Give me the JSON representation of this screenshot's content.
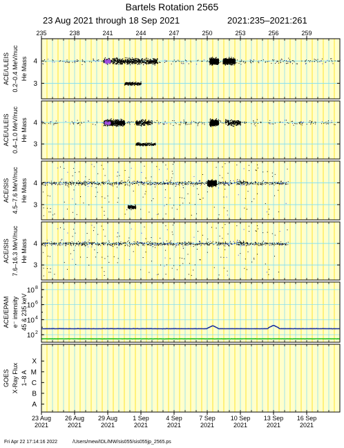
{
  "title": "Bartels Rotation 2565",
  "subtitle": {
    "range": "23 Aug 2021 through 18 Sep 2021",
    "doy": "2021:235–2021:261"
  },
  "footer": {
    "timestamp": "Fri Apr 22 17:14:16 2022",
    "path": "/Users/mew/IDL/MW/sis055/sis055jp_2565.ps"
  },
  "colors": {
    "panel_bg": "#ffffcc",
    "yellow_grid": "#ffdd00",
    "cyan_grid": "#88e0f0",
    "dots": "#000000",
    "dots_alt": "#2040ff",
    "core": "#a050e0",
    "epam_low": "#20c020",
    "epam_high": "#1a2fa0"
  },
  "chart_data": {
    "type": "scatter",
    "x_range_doy": [
      235,
      262
    ],
    "top_ticks": [
      "235",
      "238",
      "241",
      "244",
      "247",
      "250",
      "253",
      "256",
      "259"
    ],
    "top_tick_doy": [
      235,
      238,
      241,
      244,
      247,
      250,
      253,
      256,
      259
    ],
    "date_ticks": [
      {
        "day": "23 Aug",
        "year": "2021",
        "doy": 235
      },
      {
        "day": "26 Aug",
        "year": "2021",
        "doy": 238
      },
      {
        "day": "29 Aug",
        "year": "2021",
        "doy": 241
      },
      {
        "day": "1 Sep",
        "year": "2021",
        "doy": 244
      },
      {
        "day": "4 Sep",
        "year": "2021",
        "doy": 247
      },
      {
        "day": "7 Sep",
        "year": "2021",
        "doy": 250
      },
      {
        "day": "10 Sep",
        "year": "2021",
        "doy": 253
      },
      {
        "day": "13 Sep",
        "year": "2021",
        "doy": 256
      },
      {
        "day": "16 Sep",
        "year": "2021",
        "doy": 259
      }
    ],
    "panels": [
      {
        "instrument": "ACE/ULEIS",
        "energy": "0.2–0.4 MeV/nuc",
        "species": "He Mass",
        "ylim": [
          2.3,
          5.0
        ],
        "ticks": [
          "3",
          "4"
        ],
        "tick_values": [
          3,
          4
        ],
        "data_end_doy": 262,
        "clusters": [
          {
            "doy_range": [
              240.6,
              245.5
            ],
            "mass": 4.0,
            "density": "high"
          },
          {
            "doy_range": [
              250.2,
              251.0
            ],
            "mass": 4.0,
            "density": "high"
          },
          {
            "doy_range": [
              251.4,
              252.5
            ],
            "mass": 4.0,
            "density": "high"
          },
          {
            "doy_range": [
              242.5,
              244.0
            ],
            "mass": 3.0,
            "density": "medium"
          }
        ]
      },
      {
        "instrument": "ACE/ULEIS",
        "energy": "0.4–1.0 MeV/nuc",
        "species": "He Mass",
        "ylim": [
          2.3,
          5.0
        ],
        "ticks": [
          "3",
          "4"
        ],
        "tick_values": [
          3,
          4
        ],
        "data_end_doy": 262,
        "clusters": [
          {
            "doy_range": [
              240.6,
              242.5
            ],
            "mass": 4.0,
            "density": "high"
          },
          {
            "doy_range": [
              243.5,
              245.0
            ],
            "mass": 4.0,
            "density": "medium"
          },
          {
            "doy_range": [
              250.2,
              251.0
            ],
            "mass": 4.0,
            "density": "high"
          },
          {
            "doy_range": [
              251.6,
              253.0
            ],
            "mass": 4.0,
            "density": "medium"
          },
          {
            "doy_range": [
              243.5,
              245.3
            ],
            "mass": 3.0,
            "density": "medium"
          }
        ]
      },
      {
        "instrument": "ACE/SIS",
        "energy": "4.5–7.6 MeV/nuc",
        "species": "He Mass",
        "ylim": [
          2.3,
          5.0
        ],
        "ticks": [
          "3",
          "4"
        ],
        "tick_values": [
          3,
          4
        ],
        "data_end_doy": 257.3,
        "clusters": [
          {
            "doy_range": [
              250.0,
              250.8
            ],
            "mass": 4.0,
            "density": "high"
          },
          {
            "doy_range": [
              242.8,
              243.5
            ],
            "mass": 2.9,
            "density": "medium"
          }
        ]
      },
      {
        "instrument": "ACE/SIS",
        "energy": "7.6–16.3 MeV/nuc",
        "species": "He Mass",
        "ylim": [
          2.3,
          5.0
        ],
        "ticks": [
          "3",
          "4"
        ],
        "tick_values": [
          3,
          4
        ],
        "data_end_doy": 257.3,
        "clusters": []
      }
    ],
    "epam": {
      "instrument": "ACE/EPAM",
      "ylabel": "e⁻ intensity",
      "energy": "45 & 235 keV",
      "scale": "log",
      "ylim_exp": [
        1,
        9
      ],
      "ticks": [
        {
          "base": "10",
          "exp": "2",
          "value": 2
        },
        {
          "base": "10",
          "exp": "4",
          "value": 4
        },
        {
          "base": "10",
          "exp": "6",
          "value": 6
        },
        {
          "base": "10",
          "exp": "8",
          "value": 8
        }
      ],
      "series": [
        {
          "name": "45 keV",
          "log10_level": 2.8,
          "bumps": [
            {
              "doy": 250.5,
              "log10": 3.2
            },
            {
              "doy": 256.0,
              "log10": 3.25
            }
          ]
        },
        {
          "name": "235 keV",
          "log10_level": 1.45
        }
      ]
    },
    "goes": {
      "instrument": "GOES",
      "ylabel": "X-Ray Flux",
      "band": "1–8 A",
      "ticks": [
        "A",
        "B",
        "C",
        "M",
        "X"
      ]
    }
  }
}
